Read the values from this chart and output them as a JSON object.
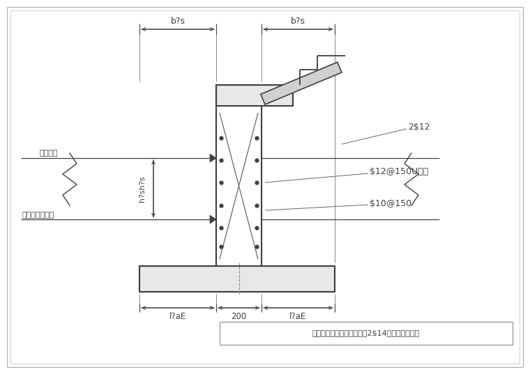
{
  "bg_color": "#ffffff",
  "line_color": "#404040",
  "dim_color": "#404040",
  "text_color": "#404040",
  "annotation_bottom": "楼面板时，增加板底附加筑2$14，锦入梁或墙柱",
  "label_b_s_left": "b?s",
  "label_b_s_right": "b?s",
  "label_h2": "h?sh?s",
  "label_200": "200",
  "label_laE_left": "l?aE",
  "label_laE_right": "l?aE",
  "label_2phi12": "2$12",
  "label_stirrup": "$12@150U型箍",
  "label_phi10": "$10@150",
  "label_qibiao": "起步标高",
  "label_structure": "结构梁或板顶面"
}
